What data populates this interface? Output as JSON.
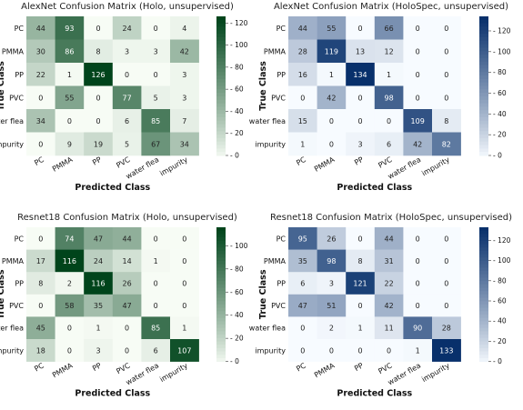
{
  "chart_data": [
    {
      "type": "heatmap",
      "title": "AlexNet Confusion Matrix (Holo, unsupervised)",
      "xlabel": "Predicted Class",
      "ylabel": "True Class",
      "categories": [
        "PC",
        "PMMA",
        "PP",
        "PVC",
        "water flea",
        "impurity"
      ],
      "values": [
        [
          44,
          93,
          0,
          24,
          0,
          4
        ],
        [
          30,
          86,
          8,
          3,
          3,
          42
        ],
        [
          22,
          1,
          126,
          0,
          0,
          3
        ],
        [
          0,
          55,
          0,
          77,
          5,
          3
        ],
        [
          34,
          0,
          0,
          6,
          85,
          7
        ],
        [
          0,
          9,
          19,
          5,
          67,
          34
        ]
      ],
      "colormap": "green",
      "colors": {
        "low": "#f7fcf5",
        "high": "#00441b"
      },
      "vmin": 0,
      "vmax": 126,
      "colorbar_ticks": [
        0,
        20,
        40,
        60,
        80,
        100,
        120
      ]
    },
    {
      "type": "heatmap",
      "title": "AlexNet Confusion Matrix (HoloSpec, unsupervised)",
      "xlabel": "Predicted Class",
      "ylabel": "True Class",
      "categories": [
        "PC",
        "PMMA",
        "PP",
        "PVC",
        "water flea",
        "impurity"
      ],
      "values": [
        [
          44,
          55,
          0,
          66,
          0,
          0
        ],
        [
          28,
          119,
          13,
          12,
          0,
          0
        ],
        [
          16,
          1,
          134,
          1,
          0,
          0
        ],
        [
          0,
          42,
          0,
          98,
          0,
          0
        ],
        [
          15,
          0,
          0,
          0,
          109,
          8
        ],
        [
          1,
          0,
          3,
          6,
          42,
          82
        ]
      ],
      "colormap": "blue",
      "colors": {
        "low": "#f7fbff",
        "high": "#08306b"
      },
      "vmin": 0,
      "vmax": 134,
      "colorbar_ticks": [
        0,
        20,
        40,
        60,
        80,
        100,
        120
      ]
    },
    {
      "type": "heatmap",
      "title": "Resnet18 Confusion Matrix (Holo, unsupervised)",
      "xlabel": "Predicted Class",
      "ylabel": "True Class",
      "categories": [
        "PC",
        "PMMA",
        "PP",
        "PVC",
        "water flea",
        "impurity"
      ],
      "values": [
        [
          0,
          74,
          47,
          44,
          0,
          0
        ],
        [
          17,
          116,
          24,
          14,
          1,
          0
        ],
        [
          8,
          2,
          116,
          26,
          0,
          0
        ],
        [
          0,
          58,
          35,
          47,
          0,
          0
        ],
        [
          45,
          0,
          1,
          0,
          85,
          1
        ],
        [
          18,
          0,
          3,
          0,
          6,
          107
        ]
      ],
      "colormap": "green",
      "colors": {
        "low": "#f7fcf5",
        "high": "#00441b"
      },
      "vmin": 0,
      "vmax": 116,
      "colorbar_ticks": [
        0,
        20,
        40,
        60,
        80,
        100
      ]
    },
    {
      "type": "heatmap",
      "title": "Resnet18 Confusion Matrix (HoloSpec, unsupervised)",
      "xlabel": "Predicted Class",
      "ylabel": "True Class",
      "categories": [
        "PC",
        "PMMA",
        "PP",
        "PVC",
        "water flea",
        "impurity"
      ],
      "values": [
        [
          95,
          26,
          0,
          44,
          0,
          0
        ],
        [
          35,
          98,
          8,
          31,
          0,
          0
        ],
        [
          6,
          3,
          121,
          22,
          0,
          0
        ],
        [
          47,
          51,
          0,
          42,
          0,
          0
        ],
        [
          0,
          2,
          1,
          11,
          90,
          28
        ],
        [
          0,
          0,
          0,
          0,
          1,
          133
        ]
      ],
      "colormap": "blue",
      "colors": {
        "low": "#f7fbff",
        "high": "#08306b"
      },
      "vmin": 0,
      "vmax": 133,
      "colorbar_ticks": [
        0,
        20,
        40,
        60,
        80,
        100,
        120
      ]
    }
  ]
}
